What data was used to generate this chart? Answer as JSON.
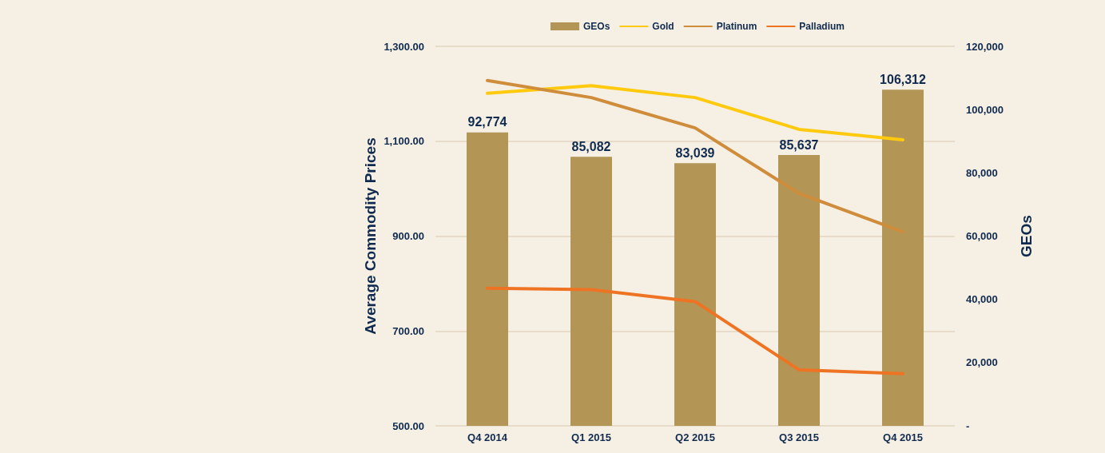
{
  "chart_data": {
    "type": "bar",
    "categories": [
      "Q4 2014",
      "Q1 2015",
      "Q2 2015",
      "Q3 2015",
      "Q4 2015"
    ],
    "series": [
      {
        "name": "GEOs",
        "axis": "y2",
        "color": "#b39656",
        "values": [
          92774,
          85082,
          83039,
          85637,
          106312
        ],
        "value_labels": [
          "92,774",
          "85,082",
          "83,039",
          "85,637",
          "106,312"
        ]
      },
      {
        "name": "Gold",
        "type": "line",
        "color": "#ffc90e",
        "values": [
          1201,
          1217,
          1192,
          1125,
          1103
        ]
      },
      {
        "name": "Platinum",
        "type": "line",
        "color": "#cf8c3a",
        "values": [
          1228,
          1192,
          1128,
          990,
          909
        ]
      },
      {
        "name": "Palladium",
        "type": "line",
        "color": "#ee7322",
        "values": [
          790,
          787,
          762,
          618,
          610
        ]
      }
    ],
    "ylabel": "Average Commodity Prices",
    "y2label": "GEOs",
    "ylim": [
      500,
      1300
    ],
    "yticks": [
      {
        "value": 500,
        "label": "500.00"
      },
      {
        "value": 700,
        "label": "700.00"
      },
      {
        "value": 900,
        "label": "900.00"
      },
      {
        "value": 1100,
        "label": "1,100.00"
      },
      {
        "value": 1300,
        "label": "1,300.00"
      }
    ],
    "y2lim": [
      0,
      120000
    ],
    "y2ticks": [
      {
        "value": 0,
        "label": "-"
      },
      {
        "value": 20000,
        "label": "20,000"
      },
      {
        "value": 40000,
        "label": "40,000"
      },
      {
        "value": 60000,
        "label": "60,000"
      },
      {
        "value": 80000,
        "label": "80,000"
      },
      {
        "value": 100000,
        "label": "100,000"
      },
      {
        "value": 120000,
        "label": "120,000"
      }
    ],
    "grid": "y",
    "legend": "top",
    "marker": "none",
    "line_style": "solid"
  }
}
